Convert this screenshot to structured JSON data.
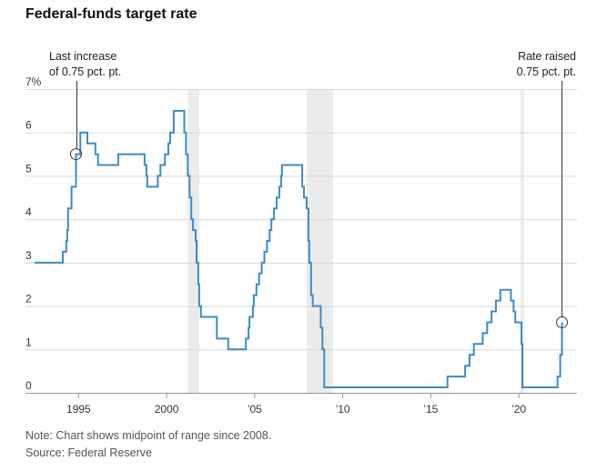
{
  "title": "Federal-funds target rate",
  "note": "Note: Chart shows midpoint of range since 2008.",
  "source": "Source: Federal Reserve",
  "colors": {
    "line": "#3d8bc6",
    "grid": "#d8d8d8",
    "recession": "#ebebeb",
    "annotation": "#333333"
  },
  "chart_data": {
    "type": "line",
    "title": "Federal-funds target rate",
    "xlabel": "",
    "ylabel": "",
    "xlim": [
      1992.5,
      2023.2
    ],
    "ylim": [
      0,
      7
    ],
    "y_ticks": [
      {
        "value": 7,
        "label": "7%"
      },
      {
        "value": 6,
        "label": "6"
      },
      {
        "value": 5,
        "label": "5"
      },
      {
        "value": 4,
        "label": "4"
      },
      {
        "value": 3,
        "label": "3"
      },
      {
        "value": 2,
        "label": "2"
      },
      {
        "value": 1,
        "label": "1"
      },
      {
        "value": 0,
        "label": "0"
      }
    ],
    "x_ticks": [
      {
        "value": 1995,
        "label": "1995"
      },
      {
        "value": 2000,
        "label": "2000"
      },
      {
        "value": 2005,
        "label": "’05"
      },
      {
        "value": 2010,
        "label": "’10"
      },
      {
        "value": 2015,
        "label": "’15"
      },
      {
        "value": 2020,
        "label": "’20"
      }
    ],
    "grid": true,
    "recessions": [
      [
        2001.2,
        2001.85
      ],
      [
        2007.95,
        2009.45
      ],
      [
        2020.1,
        2020.3
      ]
    ],
    "series": [
      {
        "name": "",
        "step": true,
        "points": [
          [
            1992.5,
            3.0
          ],
          [
            1994.1,
            3.25
          ],
          [
            1994.3,
            3.5
          ],
          [
            1994.35,
            3.75
          ],
          [
            1994.4,
            4.25
          ],
          [
            1994.6,
            4.75
          ],
          [
            1994.85,
            5.5
          ],
          [
            1995.1,
            6.0
          ],
          [
            1995.5,
            5.75
          ],
          [
            1995.95,
            5.5
          ],
          [
            1996.1,
            5.25
          ],
          [
            1997.25,
            5.5
          ],
          [
            1998.75,
            5.25
          ],
          [
            1998.85,
            5.0
          ],
          [
            1998.9,
            4.75
          ],
          [
            1999.5,
            5.0
          ],
          [
            1999.65,
            5.25
          ],
          [
            1999.9,
            5.5
          ],
          [
            2000.1,
            5.75
          ],
          [
            2000.2,
            6.0
          ],
          [
            2000.4,
            6.5
          ],
          [
            2001.0,
            6.0
          ],
          [
            2001.1,
            5.5
          ],
          [
            2001.2,
            5.0
          ],
          [
            2001.3,
            4.5
          ],
          [
            2001.4,
            4.0
          ],
          [
            2001.5,
            3.75
          ],
          [
            2001.65,
            3.5
          ],
          [
            2001.7,
            3.0
          ],
          [
            2001.8,
            2.5
          ],
          [
            2001.85,
            2.0
          ],
          [
            2001.95,
            1.75
          ],
          [
            2002.85,
            1.25
          ],
          [
            2003.5,
            1.0
          ],
          [
            2004.5,
            1.25
          ],
          [
            2004.65,
            1.5
          ],
          [
            2004.7,
            1.75
          ],
          [
            2004.9,
            2.0
          ],
          [
            2004.95,
            2.25
          ],
          [
            2005.1,
            2.5
          ],
          [
            2005.25,
            2.75
          ],
          [
            2005.4,
            3.0
          ],
          [
            2005.55,
            3.25
          ],
          [
            2005.7,
            3.5
          ],
          [
            2005.85,
            3.75
          ],
          [
            2005.95,
            4.0
          ],
          [
            2006.1,
            4.25
          ],
          [
            2006.25,
            4.5
          ],
          [
            2006.4,
            4.75
          ],
          [
            2006.5,
            5.0
          ],
          [
            2006.55,
            5.25
          ],
          [
            2007.7,
            4.75
          ],
          [
            2007.8,
            4.5
          ],
          [
            2007.95,
            4.25
          ],
          [
            2008.05,
            3.5
          ],
          [
            2008.1,
            3.0
          ],
          [
            2008.2,
            2.25
          ],
          [
            2008.3,
            2.0
          ],
          [
            2008.75,
            1.5
          ],
          [
            2008.85,
            1.0
          ],
          [
            2008.95,
            0.125
          ],
          [
            2015.95,
            0.375
          ],
          [
            2016.95,
            0.625
          ],
          [
            2017.2,
            0.875
          ],
          [
            2017.45,
            1.125
          ],
          [
            2017.95,
            1.375
          ],
          [
            2018.2,
            1.625
          ],
          [
            2018.45,
            1.875
          ],
          [
            2018.7,
            2.125
          ],
          [
            2018.95,
            2.375
          ],
          [
            2019.55,
            2.125
          ],
          [
            2019.7,
            1.875
          ],
          [
            2019.8,
            1.625
          ],
          [
            2020.15,
            1.125
          ],
          [
            2020.2,
            0.125
          ],
          [
            2022.2,
            0.375
          ],
          [
            2022.35,
            0.875
          ],
          [
            2022.45,
            1.625
          ]
        ]
      }
    ],
    "annotations": [
      {
        "text_lines": [
          "Last increase",
          "of 0.75 pct. pt."
        ],
        "x": 1994.85,
        "y": 5.5,
        "align": "start"
      },
      {
        "text_lines": [
          "Rate raised",
          "0.75 pct. pt."
        ],
        "x": 2022.45,
        "y": 1.625,
        "align": "end"
      }
    ]
  }
}
